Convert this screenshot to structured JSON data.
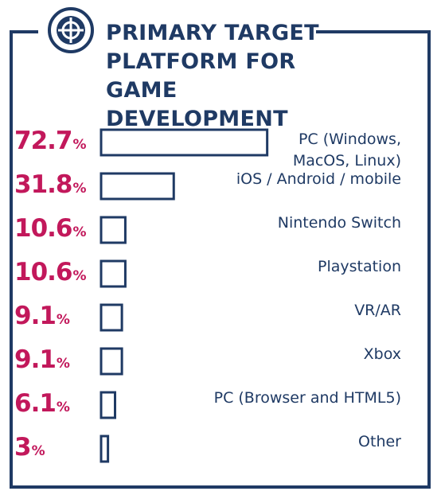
{
  "colors": {
    "navy": "#1f3a64",
    "accent": "#c2185b",
    "background": "#ffffff"
  },
  "icon": "target-crosshair-icon",
  "chart_data": {
    "type": "bar",
    "orientation": "horizontal",
    "title_lines": [
      "PRIMARY TARGET",
      "PLATFORM FOR GAME",
      "DEVELOPMENT"
    ],
    "unit": "%",
    "xlim": [
      0,
      100
    ],
    "categories": [
      [
        "PC (Windows,",
        "MacOS, Linux)"
      ],
      [
        "iOS / Android / mobile"
      ],
      [
        "Nintendo Switch"
      ],
      [
        "Playstation"
      ],
      [
        "VR/AR"
      ],
      [
        "Xbox"
      ],
      [
        "PC (Browser and HTML5)"
      ],
      [
        "Other"
      ]
    ],
    "values": [
      72.7,
      31.8,
      10.6,
      10.6,
      9.1,
      9.1,
      6.1,
      3
    ]
  }
}
